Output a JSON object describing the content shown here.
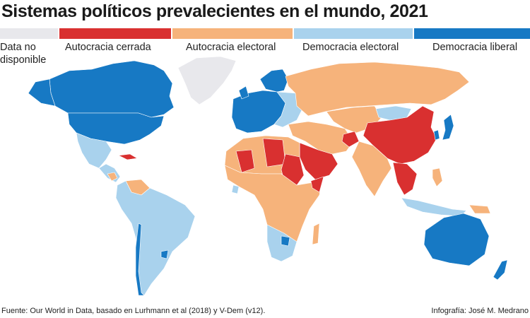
{
  "title": "Sistemas políticos prevalecientes en el mundo, 2021",
  "legend": {
    "no_data": {
      "line1": "Data no",
      "line2": "disponible",
      "color": "#e8e8ec"
    },
    "closed_autocracy": {
      "label": "Autocracia cerrada",
      "color": "#d93030"
    },
    "electoral_autocracy": {
      "label": "Autocracia electoral",
      "color": "#f6b37b"
    },
    "electoral_democracy": {
      "label": "Democracia electoral",
      "color": "#a9d2ed"
    },
    "liberal_democracy": {
      "label": "Democracia liberal",
      "color": "#1779c4"
    }
  },
  "source": "Fuente:  Our World in Data, basado en Lurhmann et al (2018) y V-Dem (v12).",
  "credit": "Infografía: José M. Medrano"
}
